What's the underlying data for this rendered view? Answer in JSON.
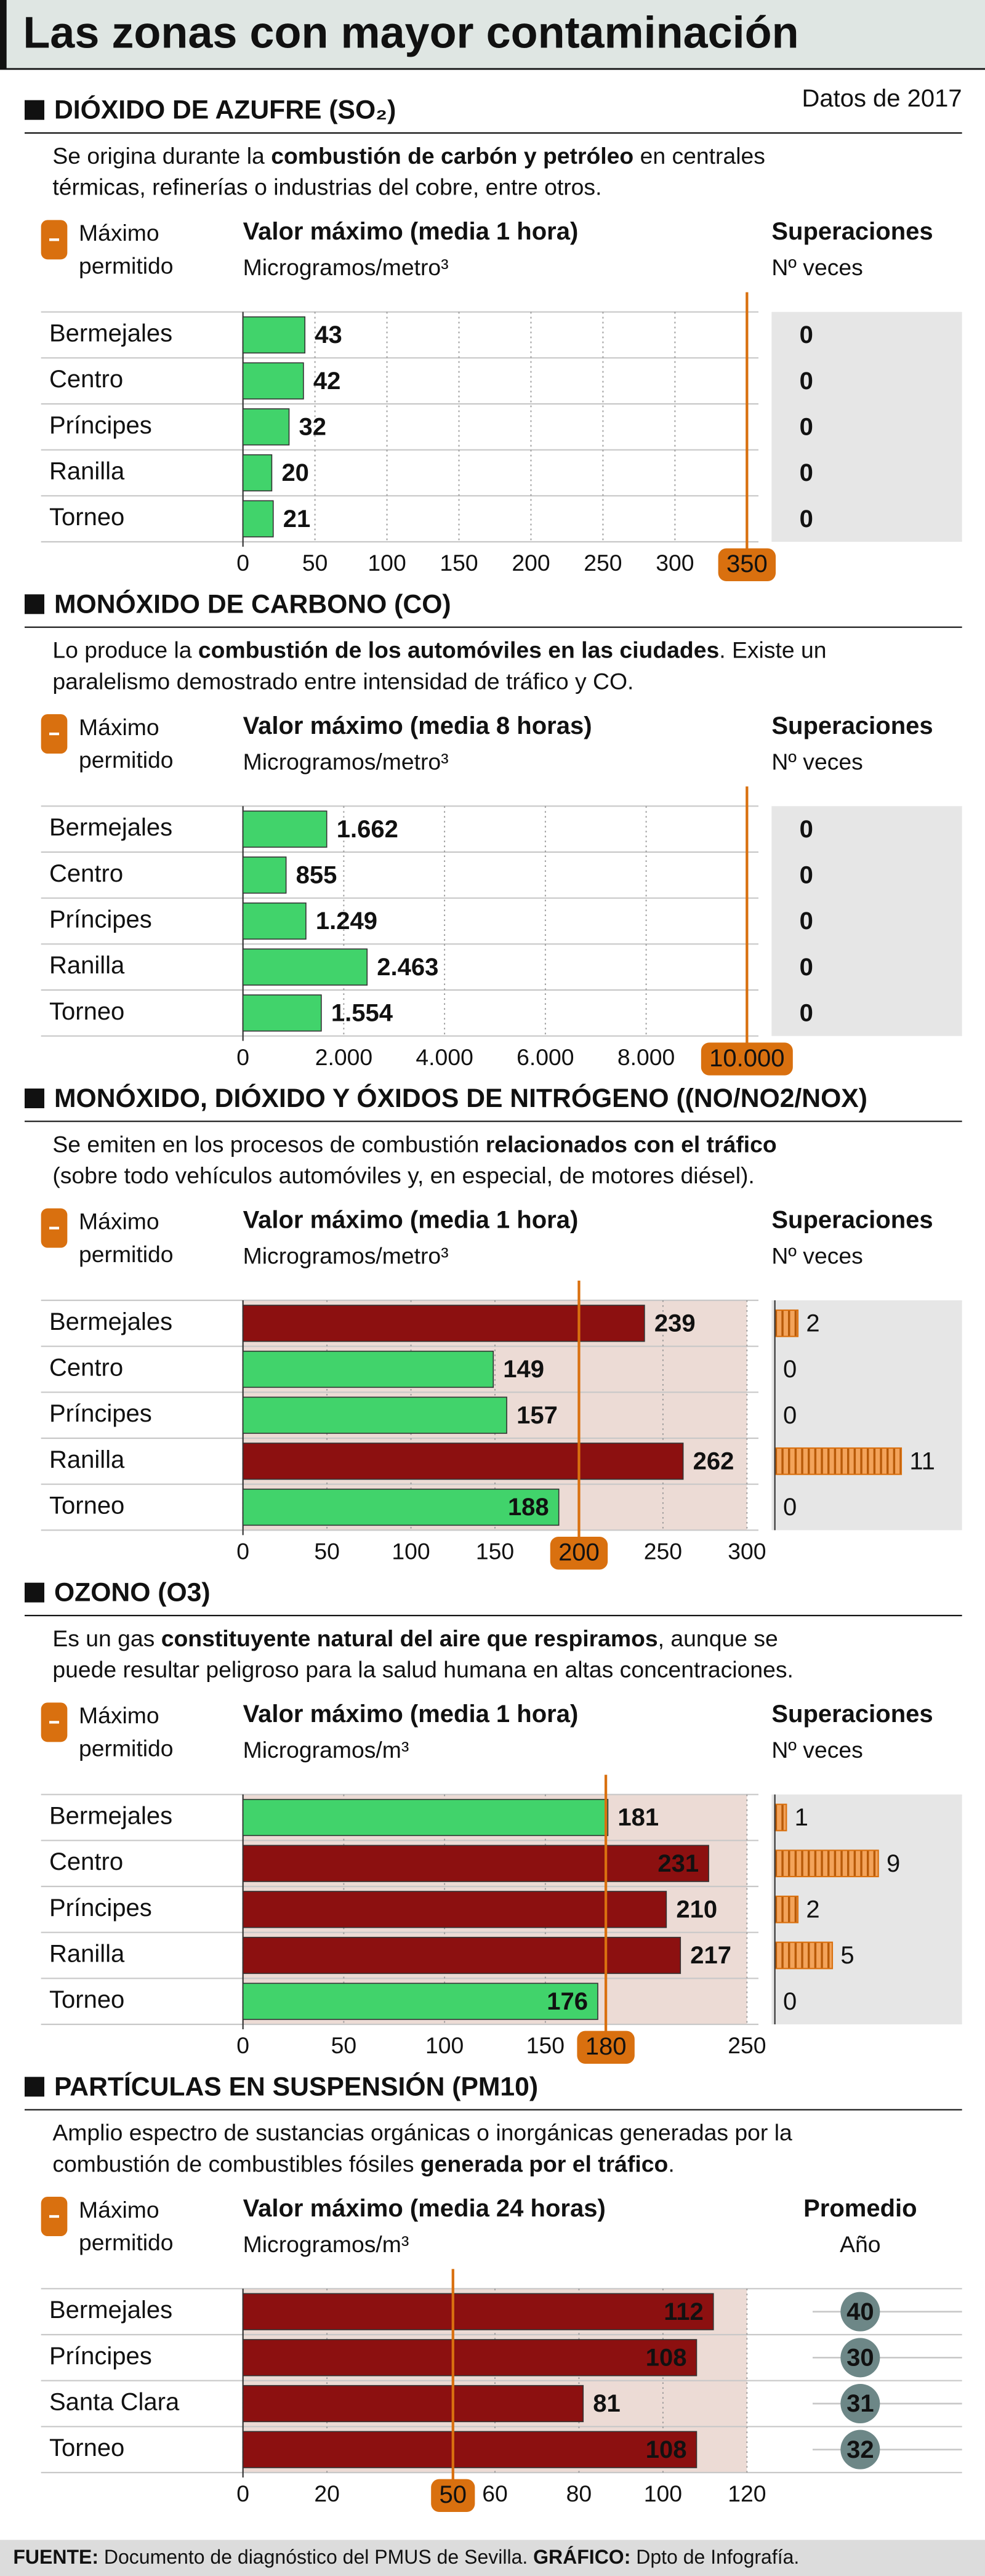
{
  "header": {
    "title": "Las zonas con mayor contaminación",
    "date_note": "Datos de 2017"
  },
  "chart_data": [
    {
      "type": "bar",
      "orientation": "horizontal",
      "title": "DIÓXIDO DE AZUFRE (SO₂)",
      "description": [
        [
          {
            "text": "Se origina durante la ",
            "bold": false
          },
          {
            "text": "combustión de carbón y petróleo",
            "bold": true
          },
          {
            "text": " en centrales",
            "bold": false
          }
        ],
        [
          {
            "text": "térmicas, refinerías o industrias del cobre, entre otros.",
            "bold": false
          }
        ]
      ],
      "limit_label": [
        "Máximo",
        "permitido"
      ],
      "value_title": "Valor máximo (media 1 hora)",
      "unit": "Microgramos/metro³",
      "right_title": "Superaciones",
      "right_subtitle": "Nº veces",
      "categories": [
        "Bermejales",
        "Centro",
        "Príncipes",
        "Ranilla",
        "Torneo"
      ],
      "values": [
        43,
        42,
        32,
        20,
        21
      ],
      "colors": [
        "#41d36b",
        "#41d36b",
        "#41d36b",
        "#41d36b",
        "#41d36b"
      ],
      "xlim": [
        0,
        350
      ],
      "xticks": [
        0,
        50,
        100,
        150,
        200,
        250,
        300
      ],
      "limit": 350,
      "limit_color": "#d9700f",
      "exceedances": [
        0,
        0,
        0,
        0,
        0
      ],
      "exceedance_color": "#d9700f",
      "shaded": false,
      "grid": true
    },
    {
      "type": "bar",
      "orientation": "horizontal",
      "title": "MONÓXIDO DE CARBONO (CO)",
      "description": [
        [
          {
            "text": "Lo produce la ",
            "bold": false
          },
          {
            "text": "combustión de los automóviles en las ciudades",
            "bold": true
          },
          {
            "text": ". Existe un",
            "bold": false
          }
        ],
        [
          {
            "text": "paralelismo demostrado entre intensidad de tráfico y CO.",
            "bold": false
          }
        ]
      ],
      "limit_label": [
        "Máximo",
        "permitido"
      ],
      "value_title": "Valor máximo (media 8 horas)",
      "unit": "Microgramos/metro³",
      "right_title": "Superaciones",
      "right_subtitle": "Nº veces",
      "categories": [
        "Bermejales",
        "Centro",
        "Príncipes",
        "Ranilla",
        "Torneo"
      ],
      "values": [
        1662,
        855,
        1249,
        2463,
        1554
      ],
      "value_labels": [
        "1.662",
        "855",
        "1.249",
        "2.463",
        "1.554"
      ],
      "colors": [
        "#41d36b",
        "#41d36b",
        "#41d36b",
        "#41d36b",
        "#41d36b"
      ],
      "xlim": [
        0,
        10000
      ],
      "xticks": [
        0,
        {
          "value": 2000,
          "label": "2.000"
        },
        {
          "value": 4000,
          "label": "4.000"
        },
        {
          "value": 6000,
          "label": "6.000"
        },
        {
          "value": 8000,
          "label": "8.000"
        }
      ],
      "limit": {
        "value": 10000,
        "label": "10.000"
      },
      "limit_color": "#d9700f",
      "exceedances": [
        0,
        0,
        0,
        0,
        0
      ],
      "exceedance_color": "#d9700f",
      "shaded": false,
      "grid": true
    },
    {
      "type": "bar",
      "orientation": "horizontal",
      "title": "MONÓXIDO, DIÓXIDO Y ÓXIDOS DE NITRÓGENO ((NO/NO2/NOX)",
      "description": [
        [
          {
            "text": "Se emiten en los procesos de combustión ",
            "bold": false
          },
          {
            "text": "relacionados con el tráfico",
            "bold": true
          }
        ],
        [
          {
            "text": "(sobre todo vehículos automóviles y, en especial, de motores diésel).",
            "bold": false
          }
        ]
      ],
      "limit_label": [
        "Máximo",
        "permitido"
      ],
      "value_title": "Valor máximo (media 1 hora)",
      "unit": "Microgramos/metro³",
      "right_title": "Superaciones",
      "right_subtitle": "Nº veces",
      "categories": [
        "Bermejales",
        "Centro",
        "Príncipes",
        "Ranilla",
        "Torneo"
      ],
      "values": [
        239,
        149,
        157,
        262,
        188
      ],
      "colors": [
        "#8c1010",
        "#41d36b",
        "#41d36b",
        "#8c1010",
        "#41d36b"
      ],
      "xlim": [
        0,
        300
      ],
      "xticks": [
        0,
        50,
        100,
        150,
        250,
        300
      ],
      "limit": 200,
      "limit_color": "#d9700f",
      "exceedances": [
        2,
        0,
        0,
        11,
        0
      ],
      "exceedance_color": "#d9700f",
      "shaded": true,
      "grid": true
    },
    {
      "type": "bar",
      "orientation": "horizontal",
      "title": "OZONO (O3)",
      "description": [
        [
          {
            "text": "Es un gas ",
            "bold": false
          },
          {
            "text": "constituyente natural del aire que respiramos",
            "bold": true
          },
          {
            "text": ", aunque se",
            "bold": false
          }
        ],
        [
          {
            "text": "puede resultar peligroso para la salud humana en altas concentraciones.",
            "bold": false
          }
        ]
      ],
      "limit_label": [
        "Máximo",
        "permitido"
      ],
      "value_title": "Valor máximo (media 1 hora)",
      "unit": "Microgramos/m³",
      "right_title": "Superaciones",
      "right_subtitle": "Nº veces",
      "categories": [
        "Bermejales",
        "Centro",
        "Príncipes",
        "Ranilla",
        "Torneo"
      ],
      "values": [
        181,
        231,
        210,
        217,
        176
      ],
      "colors": [
        "#41d36b",
        "#8c1010",
        "#8c1010",
        "#8c1010",
        "#41d36b"
      ],
      "xlim": [
        0,
        250
      ],
      "xticks": [
        0,
        50,
        100,
        150,
        250
      ],
      "limit": 180,
      "limit_color": "#d9700f",
      "exceedances": [
        1,
        9,
        2,
        5,
        0
      ],
      "exceedance_color": "#d9700f",
      "shaded": true,
      "grid": true
    },
    {
      "type": "bar",
      "orientation": "horizontal",
      "title": "PARTÍCULAS EN SUSPENSIÓN (PM10)",
      "description": [
        [
          {
            "text": "Amplio espectro de sustancias orgánicas o inorgánicas generadas por la",
            "bold": false
          }
        ],
        [
          {
            "text": "combustión de combustibles fósiles ",
            "bold": false
          },
          {
            "text": "generada por el tráfico",
            "bold": true
          },
          {
            "text": ".",
            "bold": false
          }
        ]
      ],
      "limit_label": [
        "Máximo",
        "permitido"
      ],
      "value_title": "Valor máximo (media 24 horas)",
      "unit": "Microgramos/m³",
      "right_title": "Promedio",
      "right_subtitle": "Año",
      "categories": [
        "Bermejales",
        "Príncipes",
        "Santa Clara",
        "Torneo"
      ],
      "values": [
        112,
        108,
        81,
        108
      ],
      "colors": [
        "#8c1010",
        "#8c1010",
        "#8c1010",
        "#8c1010"
      ],
      "xlim": [
        0,
        120
      ],
      "xticks": [
        0,
        20,
        60,
        80,
        100,
        120
      ],
      "limit": 50,
      "limit_color": "#d9700f",
      "annual_average": [
        40,
        30,
        31,
        32
      ],
      "annual_color": "#6d8787",
      "shaded": true,
      "grid": true
    }
  ],
  "footer": [
    {
      "text": "FUENTE:",
      "bold": true
    },
    {
      "text": " Documento de diagnóstico del PMUS de Sevilla. ",
      "bold": false
    },
    {
      "text": "GRÁFICO:",
      "bold": true
    },
    {
      "text": " Dpto de Infografía.",
      "bold": false
    }
  ]
}
